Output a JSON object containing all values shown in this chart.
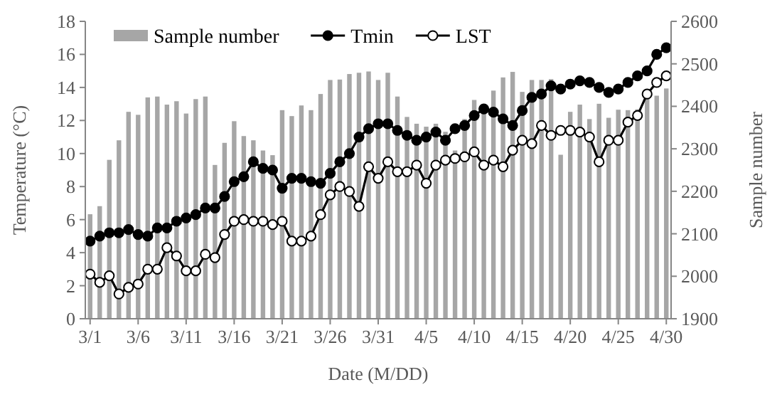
{
  "chart_data": {
    "type": "line",
    "xlabel": "Date (M/DD)",
    "ylabel": "Temperature (°C)",
    "y2label": "Sample number",
    "categories": [
      "3/1",
      null,
      null,
      null,
      null,
      "3/6",
      null,
      null,
      null,
      null,
      "3/11",
      null,
      null,
      null,
      null,
      "3/16",
      null,
      null,
      null,
      null,
      "3/21",
      null,
      null,
      null,
      null,
      "3/26",
      null,
      null,
      null,
      null,
      "3/31",
      null,
      null,
      null,
      null,
      "4/5",
      null,
      null,
      null,
      null,
      "4/10",
      null,
      null,
      null,
      null,
      "4/15",
      null,
      null,
      null,
      null,
      "4/20",
      null,
      null,
      null,
      null,
      "4/25",
      null,
      null,
      null,
      null,
      "4/30"
    ],
    "series": [
      {
        "name": "Sample number",
        "type": "bar",
        "axis": "y2",
        "color": "#a6a6a6",
        "values": [
          2146,
          2165,
          2274,
          2320,
          2387,
          2380,
          2421,
          2423,
          2404,
          2412,
          2383,
          2417,
          2423,
          2262,
          2314,
          2365,
          2330,
          2320,
          2296,
          2285,
          2391,
          2377,
          2402,
          2391,
          2429,
          2462,
          2463,
          2476,
          2479,
          2482,
          2462,
          2479,
          2423,
          2375,
          2359,
          2352,
          2359,
          2340,
          2296,
          2370,
          2415,
          2393,
          2437,
          2468,
          2481,
          2434,
          2462,
          2462,
          2464,
          2286,
          2387,
          2404,
          2370,
          2406,
          2373,
          2392,
          2391,
          2393,
          2423,
          2425,
          2442
        ]
      },
      {
        "name": "Tmin",
        "color": "#000000",
        "values": [
          4.7,
          5.0,
          5.2,
          5.2,
          5.4,
          5.1,
          5.0,
          5.5,
          5.5,
          5.9,
          6.1,
          6.3,
          6.7,
          6.7,
          7.4,
          8.3,
          8.6,
          9.5,
          9.1,
          9.0,
          7.9,
          8.5,
          8.5,
          8.3,
          8.2,
          8.8,
          9.5,
          10.0,
          11.0,
          11.5,
          11.8,
          11.8,
          11.4,
          11.1,
          10.8,
          11.0,
          11.3,
          10.8,
          11.5,
          11.7,
          12.3,
          12.7,
          12.5,
          12.1,
          11.7,
          12.6,
          13.4,
          13.6,
          14.1,
          13.9,
          14.2,
          14.4,
          14.3,
          14.0,
          13.7,
          13.9,
          14.3,
          14.7,
          15.0,
          16.0,
          16.4
        ]
      },
      {
        "name": "LST",
        "color": "#000000",
        "values": [
          2.7,
          2.2,
          2.6,
          1.5,
          1.9,
          2.1,
          3.0,
          3.0,
          4.3,
          3.8,
          2.9,
          2.9,
          3.9,
          3.7,
          5.1,
          5.9,
          6.0,
          5.9,
          5.9,
          5.7,
          5.9,
          4.7,
          4.7,
          5.0,
          6.3,
          7.5,
          8.0,
          7.7,
          6.8,
          9.2,
          8.5,
          9.5,
          8.9,
          8.9,
          9.3,
          8.2,
          9.3,
          9.6,
          9.7,
          9.8,
          10.1,
          9.3,
          9.6,
          9.2,
          10.2,
          10.8,
          10.6,
          11.7,
          11.1,
          11.4,
          11.4,
          11.3,
          11.0,
          9.5,
          10.8,
          10.8,
          11.9,
          12.3,
          13.6,
          14.3,
          14.7
        ]
      }
    ],
    "ylim": [
      0,
      18
    ],
    "yticks": [
      0,
      2,
      4,
      6,
      8,
      10,
      12,
      14,
      16,
      18
    ],
    "y2lim": [
      1900,
      2600
    ],
    "y2ticks": [
      1900,
      2000,
      2100,
      2200,
      2300,
      2400,
      2500,
      2600
    ],
    "legend": "top",
    "grid": false,
    "marker": "circle",
    "line_style": "solid"
  }
}
